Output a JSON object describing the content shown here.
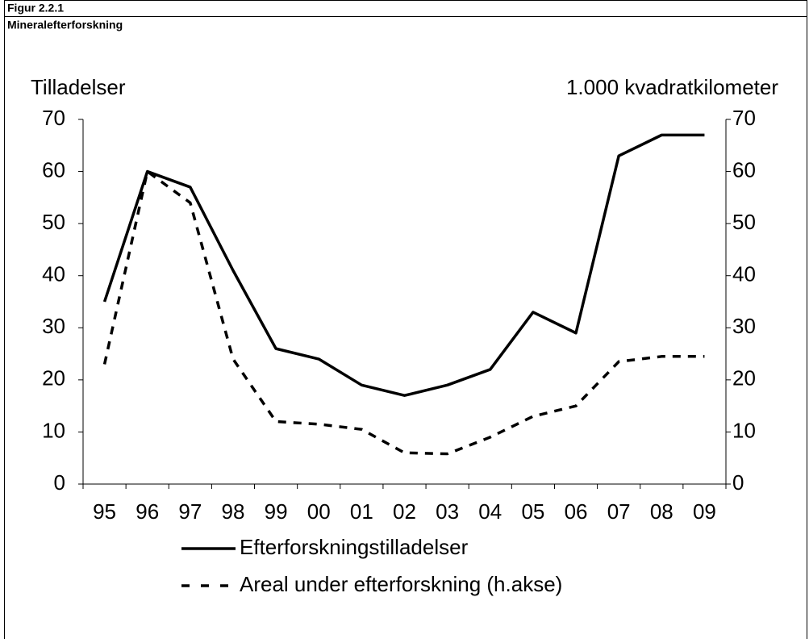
{
  "chart_data": {
    "type": "line",
    "figure_label": "Figur 2.2.1",
    "title": "Mineralefterforskning",
    "ylabel": "Tilladelser",
    "y2label": "1.000 kvadratkilometer",
    "categories": [
      "95",
      "96",
      "97",
      "98",
      "99",
      "00",
      "01",
      "02",
      "03",
      "04",
      "05",
      "06",
      "07",
      "08",
      "09"
    ],
    "series": [
      {
        "name": "Efterforskningstilladelser",
        "color": "#000000",
        "dash": "solid",
        "values": [
          35,
          60,
          57,
          41,
          26,
          24,
          19,
          17,
          19,
          22,
          33,
          29,
          63,
          67,
          67
        ]
      },
      {
        "name": "Areal under efterforskning (h.akse)",
        "color": "#000000",
        "dash": "dashed",
        "axis": "y2",
        "values": [
          23,
          60,
          54,
          24,
          12,
          11.5,
          10.5,
          6,
          5.8,
          9,
          13,
          15,
          23.5,
          24.5,
          24.5
        ]
      }
    ],
    "ylim": [
      0,
      70
    ],
    "yticks": [
      0,
      10,
      20,
      30,
      40,
      50,
      60,
      70
    ],
    "y2lim": [
      0,
      70
    ],
    "y2ticks": [
      0,
      10,
      20,
      30,
      40,
      50,
      60,
      70
    ],
    "grid": false,
    "legend": "bottom"
  }
}
